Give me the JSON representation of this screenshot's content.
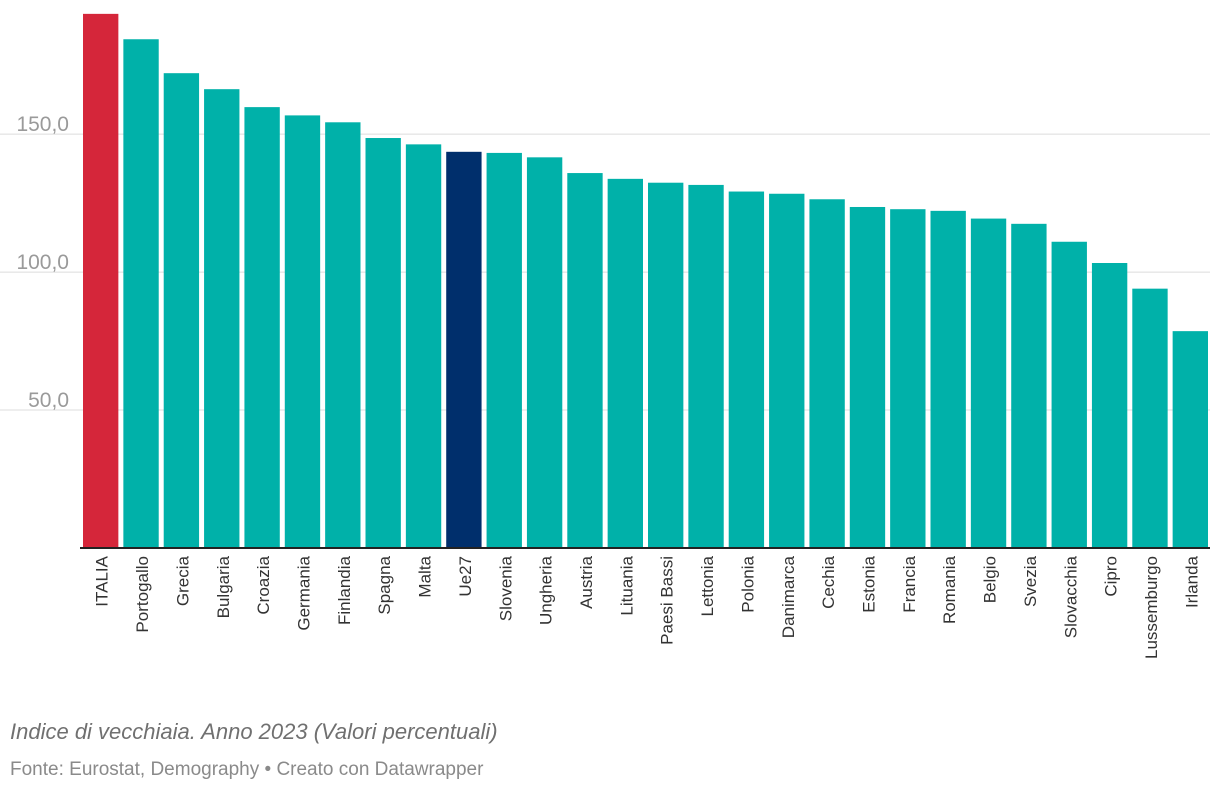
{
  "chart_data": {
    "type": "bar",
    "title": "Indice di vecchiaia. Anno 2023 (Valori percentuali)",
    "xlabel": "",
    "ylabel": "",
    "ylim": [
      0,
      195
    ],
    "yticks": [
      50,
      100,
      150
    ],
    "ytick_labels": [
      "50,0",
      "100,0",
      "150,0"
    ],
    "grid": true,
    "categories": [
      "ITALIA",
      "Portogallo",
      "Grecia",
      "Bulgaria",
      "Croazia",
      "Germania",
      "Finlandia",
      "Spagna",
      "Malta",
      "Ue27",
      "Slovenia",
      "Ungheria",
      "Austria",
      "Lituania",
      "Paesi Bassi",
      "Lettonia",
      "Polonia",
      "Danimarca",
      "Cechia",
      "Estonia",
      "Francia",
      "Romania",
      "Belgio",
      "Svezia",
      "Slovacchia",
      "Cipro",
      "Lussemburgo",
      "Irlanda"
    ],
    "values": [
      193.6,
      184.4,
      172.1,
      166.3,
      159.8,
      156.8,
      154.3,
      148.6,
      146.3,
      143.6,
      143.2,
      141.6,
      135.9,
      133.8,
      132.4,
      131.6,
      129.2,
      128.4,
      126.4,
      123.6,
      122.8,
      122.2,
      119.4,
      117.5,
      111.0,
      103.3,
      94.0,
      78.6
    ],
    "colors": {
      "default": "#00b1a9",
      "highlight": "#d5263a",
      "average": "#002f6c",
      "highlight_category": "ITALIA",
      "average_category": "Ue27"
    }
  },
  "caption": "Indice di vecchiaia. Anno 2023 (Valori percentuali)",
  "source": "Fonte: Eurostat, Demography • Creato con Datawrapper"
}
